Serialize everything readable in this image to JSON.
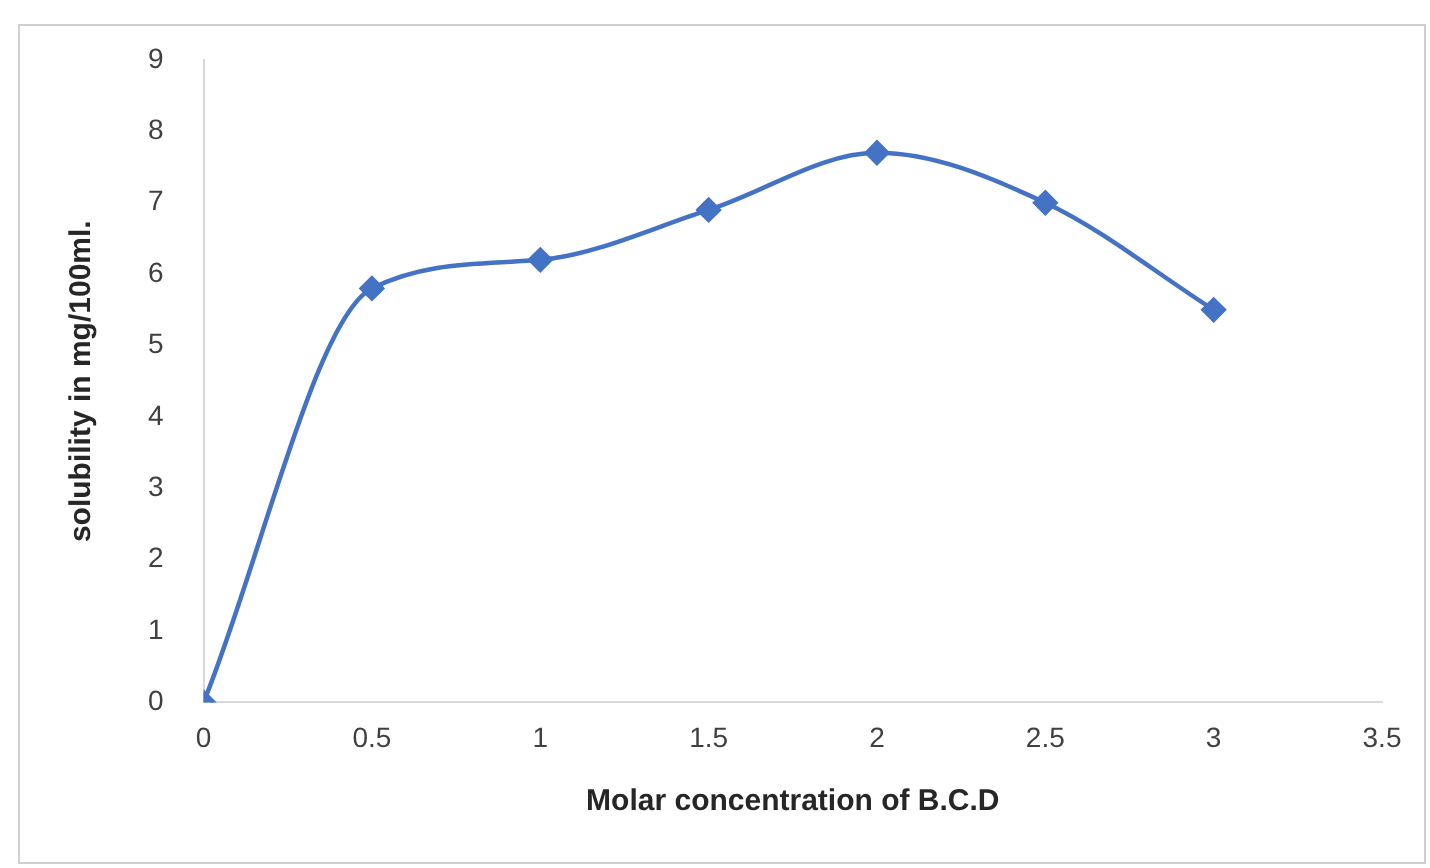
{
  "chart_data": {
    "type": "line",
    "xlabel": "Molar concentration of B.C.D",
    "ylabel": "solubility in mg/100ml.",
    "x": [
      0,
      0.5,
      1,
      1.5,
      2,
      2.5,
      3
    ],
    "series": [
      {
        "color": "#4472c4",
        "values": [
          0,
          5.8,
          6.2,
          6.9,
          7.7,
          7.0,
          5.5
        ]
      }
    ],
    "xlim": [
      0,
      3.5
    ],
    "xticks": [
      0,
      0.5,
      1,
      1.5,
      2,
      2.5,
      3,
      3.5
    ],
    "ylim": [
      0,
      9
    ],
    "yticks": [
      0,
      1,
      2,
      3,
      4,
      5,
      6,
      7,
      8,
      9
    ],
    "grid": false,
    "legend": false,
    "marker": "diamond",
    "line_style": "solid"
  }
}
